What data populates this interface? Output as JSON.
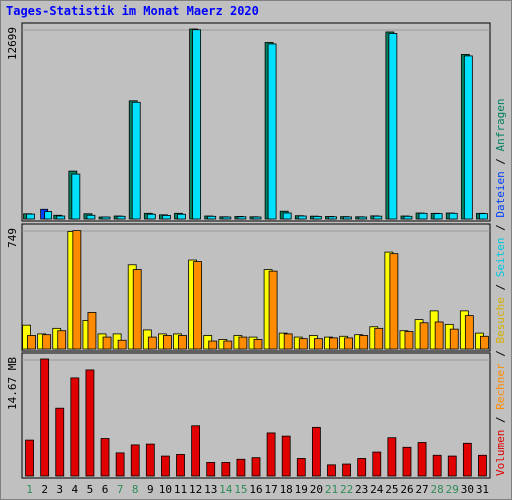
{
  "chart_data": {
    "type": "bar",
    "title": "Tages-Statistik im Monat Maerz 2020",
    "colors": {
      "title": "#0000ff",
      "background": "#c0c0c0",
      "plot_background": "#c0c0c0",
      "gridline": "#a0a0a0",
      "weekend_label": "#2e8b57",
      "weekday_label": "#000000"
    },
    "categories": [
      "1",
      "2",
      "3",
      "4",
      "5",
      "6",
      "7",
      "8",
      "9",
      "10",
      "11",
      "12",
      "13",
      "14",
      "15",
      "16",
      "17",
      "18",
      "19",
      "20",
      "21",
      "22",
      "23",
      "24",
      "25",
      "26",
      "27",
      "28",
      "29",
      "30",
      "31"
    ],
    "weekend_days": [
      "1",
      "7",
      "8",
      "14",
      "15",
      "21",
      "22",
      "28",
      "29"
    ],
    "panels": [
      {
        "name": "top",
        "y_label": "12699",
        "ylim": [
          0,
          12699
        ],
        "series": [
          {
            "name": "Anfragen",
            "color": "#008060",
            "values": [
              350,
              650,
              250,
              3200,
              350,
              120,
              200,
              7900,
              380,
              280,
              380,
              12699,
              200,
              150,
              170,
              150,
              11800,
              520,
              220,
              190,
              170,
              160,
              150,
              210,
              12500,
              200,
              400,
              380,
              400,
              11000,
              380
            ]
          },
          {
            "name": "Seiten",
            "color": "#00e0ff",
            "values": [
              330,
              500,
              200,
              3000,
              250,
              100,
              180,
              7800,
              320,
              240,
              320,
              12650,
              180,
              130,
              150,
              130,
              11700,
              400,
              200,
              170,
              150,
              140,
              130,
              190,
              12400,
              180,
              380,
              360,
              380,
              10900,
              360
            ]
          },
          {
            "name": "Dateien",
            "color": "#0040ff",
            "values": [
              0,
              650,
              0,
              0,
              0,
              0,
              0,
              0,
              0,
              0,
              0,
              0,
              0,
              0,
              0,
              0,
              0,
              0,
              0,
              0,
              0,
              0,
              0,
              0,
              0,
              0,
              0,
              0,
              0,
              0,
              0
            ]
          }
        ],
        "legend": [
          "Anfragen",
          "/",
          "Dateien",
          "/",
          "Seiten"
        ]
      },
      {
        "name": "middle",
        "y_label": "749",
        "ylim": [
          0,
          749
        ],
        "series": [
          {
            "name": "Besuche",
            "color": "#ffff00",
            "values": [
              150,
              95,
              130,
              740,
              180,
              95,
              95,
              530,
              120,
              95,
              95,
              560,
              85,
              60,
              85,
              75,
              500,
              100,
              75,
              85,
              75,
              80,
              90,
              140,
              610,
              115,
              185,
              240,
              155,
              240,
              100
            ]
          },
          {
            "name": "Rechner",
            "color": "#ff8c00",
            "values": [
              85,
              90,
              115,
              745,
              230,
              75,
              55,
              500,
              75,
              85,
              85,
              550,
              50,
              50,
              75,
              60,
              490,
              95,
              65,
              65,
              70,
              70,
              85,
              130,
              600,
              110,
              165,
              170,
              125,
              210,
              80
            ]
          }
        ],
        "legend": [
          "Besuche"
        ]
      },
      {
        "name": "bottom",
        "y_label": "14.67 MB",
        "ylim": [
          0,
          14.67
        ],
        "series": [
          {
            "name": "Volumen",
            "color": "#e00000",
            "values": [
              4.5,
              14.67,
              8.5,
              12.3,
              13.3,
              4.7,
              2.9,
              3.9,
              4.0,
              2.5,
              2.7,
              6.3,
              1.7,
              1.7,
              2.1,
              2.3,
              5.4,
              5.0,
              2.2,
              6.1,
              1.4,
              1.5,
              2.2,
              3.0,
              4.8,
              3.6,
              4.2,
              2.6,
              2.5,
              4.1,
              2.6
            ]
          }
        ],
        "legend": [
          "Volumen",
          "/",
          "Rechner",
          "/"
        ]
      }
    ],
    "legend_full": "Volumen / Rechner / Besuche / Seiten / Dateien / Anfragen",
    "grid": true
  }
}
